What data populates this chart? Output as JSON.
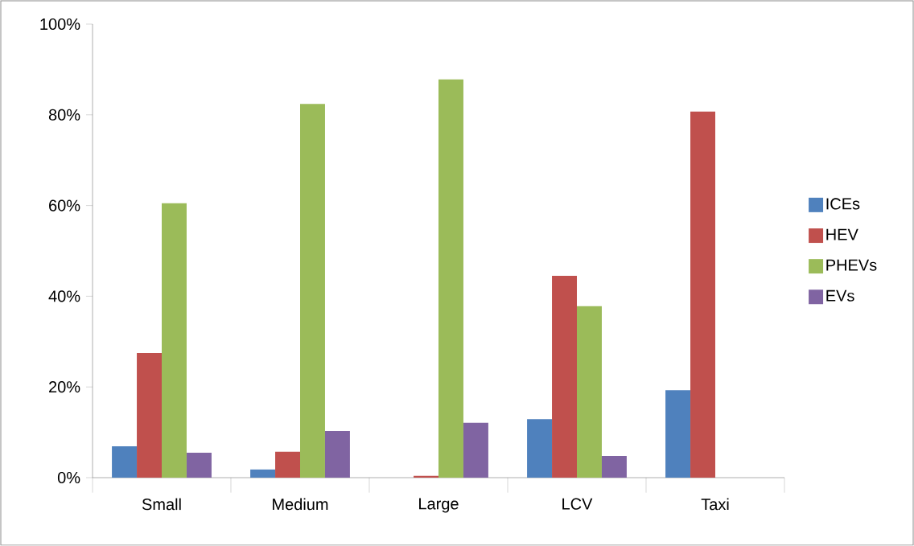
{
  "chart_data": {
    "type": "bar",
    "categories": [
      "Small",
      "Medium",
      "Large",
      "LCV",
      "Taxi"
    ],
    "series": [
      {
        "name": "ICEs",
        "color": "#4f81bd",
        "values": [
          6.9,
          1.8,
          0,
          12.9,
          19.3
        ]
      },
      {
        "name": "HEV",
        "color": "#c0504d",
        "values": [
          27.5,
          5.7,
          0.4,
          44.5,
          80.7
        ]
      },
      {
        "name": "PHEVs",
        "color": "#9bbb59",
        "values": [
          60.5,
          82.4,
          87.8,
          37.8,
          0
        ]
      },
      {
        "name": "EVs",
        "color": "#8064a2",
        "values": [
          5.5,
          10.3,
          12.1,
          4.8,
          0
        ]
      }
    ],
    "ylim": [
      0,
      100
    ],
    "yticks": [
      {
        "value": 0,
        "label": "0%"
      },
      {
        "value": 20,
        "label": "20%"
      },
      {
        "value": 40,
        "label": "40%"
      },
      {
        "value": 60,
        "label": "60%"
      },
      {
        "value": 80,
        "label": "80%"
      },
      {
        "value": 100,
        "label": "100%"
      }
    ],
    "grid": false,
    "legend": "right"
  }
}
